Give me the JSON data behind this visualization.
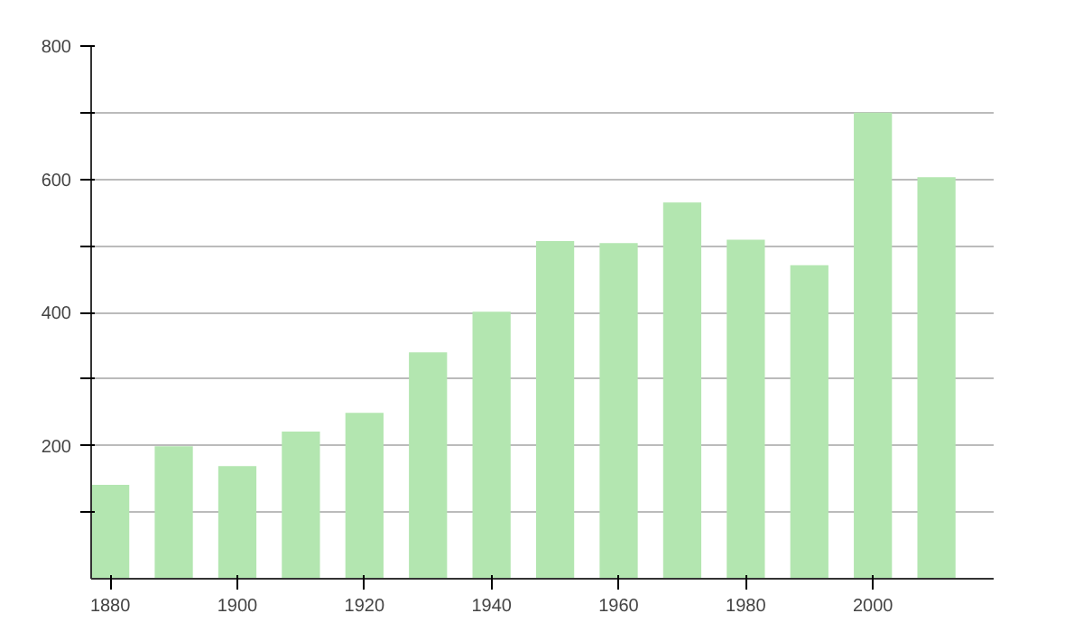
{
  "chart_data": {
    "type": "bar",
    "x": [
      1880,
      1890,
      1900,
      1910,
      1920,
      1930,
      1940,
      1950,
      1960,
      1970,
      1980,
      1990,
      2000,
      2010
    ],
    "values": [
      141,
      199,
      169,
      221,
      249,
      340,
      401,
      507,
      504,
      565,
      509,
      471,
      700,
      603
    ],
    "color": "#b3e6b0",
    "xlim": [
      1877,
      2019
    ],
    "xticks": [
      1880,
      1900,
      1920,
      1940,
      1960,
      1980,
      2000
    ],
    "ylim": [
      0,
      800
    ],
    "yticks": [
      {
        "value": 100,
        "label": null
      },
      200,
      {
        "value": 300,
        "label": null
      },
      400,
      {
        "value": 500,
        "label": null
      },
      600,
      {
        "value": 700,
        "label": null
      },
      800
    ],
    "grid": "y"
  }
}
